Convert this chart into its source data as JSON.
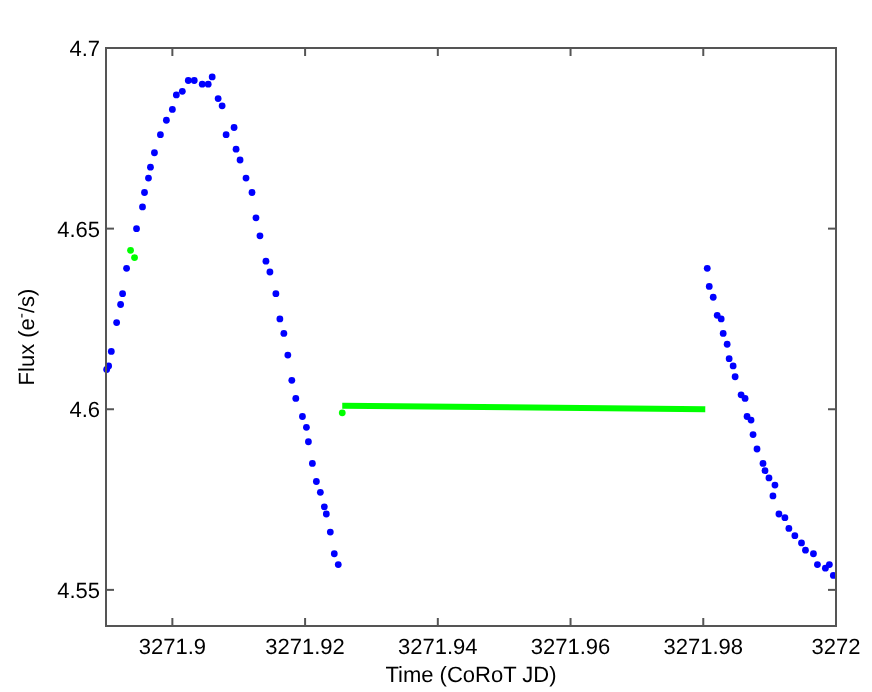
{
  "chart_data": {
    "type": "scatter",
    "xlabel": "Time (CoRoT JD)",
    "ylabel": "Flux (e$^{-}$/s)",
    "xlim": [
      3271.89,
      3272
    ],
    "ylim": [
      4.54,
      4.7
    ],
    "xticks": [
      3271.9,
      3271.92,
      3271.94,
      3271.96,
      3271.98,
      3272
    ],
    "yticks": [
      4.55,
      4.6,
      4.65,
      4.7
    ],
    "marker": "circle",
    "series": [
      {
        "color": "#0000ff",
        "x": [
          3271.8901,
          3271.8904,
          3271.8908,
          3271.8916,
          3271.8922,
          3271.8925,
          3271.8931,
          3271.8946,
          3271.8955,
          3271.8958,
          3271.8964,
          3271.8967,
          3271.8973,
          3271.8982,
          3271.8991,
          3271.9,
          3271.9006,
          3271.9015,
          3271.9024,
          3271.9033,
          3271.9045,
          3271.9054,
          3271.906,
          3271.9069,
          3271.9075,
          3271.9081,
          3271.9093,
          3271.9096,
          3271.9102,
          3271.9111,
          3271.912,
          3271.9126,
          3271.9132,
          3271.9141,
          3271.9147,
          3271.9156,
          3271.9162,
          3271.9168,
          3271.9174,
          3271.918,
          3271.9186,
          3271.9196,
          3271.9202,
          3271.9205,
          3271.9211,
          3271.9217,
          3271.9223,
          3271.9229,
          3271.9232,
          3271.9238,
          3271.9244,
          3271.925,
          3271.9806,
          3271.9809,
          3271.9815,
          3271.9821,
          3271.9827,
          3271.983,
          3271.9836,
          3271.9839,
          3271.9845,
          3271.9848,
          3271.9857,
          3271.9863,
          3271.9866,
          3271.9872,
          3271.9875,
          3271.9881,
          3271.989,
          3271.9893,
          3271.9899,
          3271.9905,
          3271.9908,
          3271.9914,
          3271.9923,
          3271.9929,
          3271.9938,
          3271.9948,
          3271.9954,
          3271.9966,
          3271.9972,
          3271.9984,
          3271.999,
          3271.9996
        ],
        "values": [
          4.611,
          4.612,
          4.616,
          4.624,
          4.629,
          4.632,
          4.639,
          4.65,
          4.656,
          4.66,
          4.664,
          4.667,
          4.671,
          4.676,
          4.68,
          4.683,
          4.687,
          4.688,
          4.691,
          4.691,
          4.69,
          4.69,
          4.692,
          4.686,
          4.684,
          4.676,
          4.678,
          4.672,
          4.669,
          4.664,
          4.66,
          4.653,
          4.648,
          4.641,
          4.638,
          4.632,
          4.625,
          4.621,
          4.615,
          4.608,
          4.603,
          4.598,
          4.595,
          4.591,
          4.585,
          4.58,
          4.577,
          4.573,
          4.571,
          4.566,
          4.56,
          4.557,
          4.639,
          4.634,
          4.631,
          4.626,
          4.625,
          4.621,
          4.618,
          4.614,
          4.612,
          4.609,
          4.604,
          4.603,
          4.598,
          4.597,
          4.593,
          4.589,
          4.585,
          4.583,
          4.581,
          4.576,
          4.579,
          4.571,
          4.57,
          4.567,
          4.565,
          4.563,
          4.561,
          4.56,
          4.557,
          4.556,
          4.557,
          4.554
        ]
      },
      {
        "type": "line",
        "marker": "none",
        "color": "#00ff00",
        "x": [
          3271.9256,
          3271.9803
        ],
        "values": [
          4.601,
          4.6
        ]
      },
      {
        "color": "#00ff00",
        "x": [
          3271.8937,
          3271.8943,
          3271.9256
        ],
        "values": [
          4.644,
          4.642,
          4.599
        ]
      }
    ]
  }
}
